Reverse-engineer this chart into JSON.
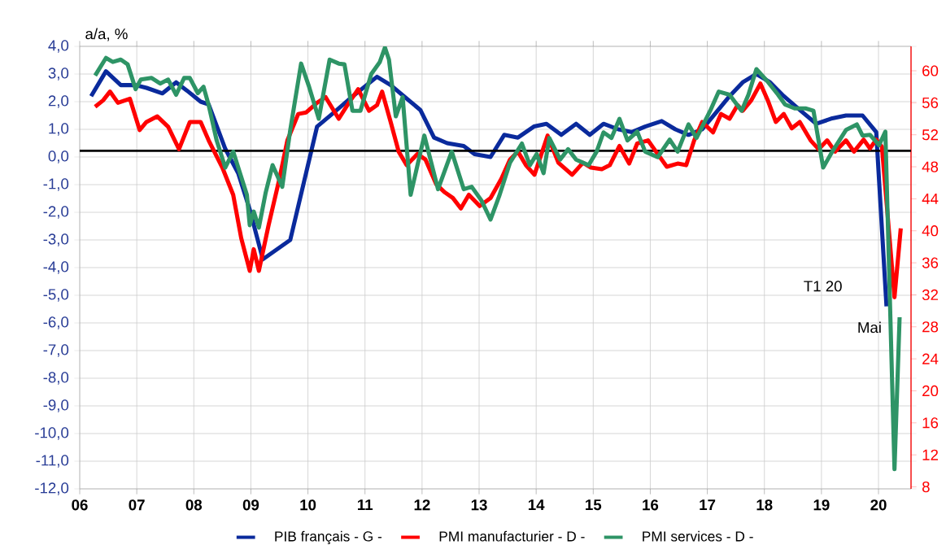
{
  "chart_data": {
    "type": "line",
    "ylabel": "a/a, %",
    "annotations": [
      "T1 20",
      "Mai"
    ],
    "series": [
      {
        "name": "PIB français - G -",
        "color": "#0a2a9c",
        "x": [
          2006.2,
          2006.46,
          2006.72,
          2006.98,
          2007.17,
          2007.45,
          2007.69,
          2007.88,
          2008.12,
          2008.26,
          2008.55,
          2008.78,
          2008.98,
          2009.21,
          2009.69,
          2010.16,
          2010.45,
          2010.73,
          2010.97,
          2011.21,
          2011.45,
          2011.68,
          2011.97,
          2012.21,
          2012.44,
          2012.73,
          2012.92,
          2013.2,
          2013.44,
          2013.68,
          2013.96,
          2014.18,
          2014.44,
          2014.7,
          2014.94,
          2015.18,
          2015.44,
          2015.68,
          2015.91,
          2016.2,
          2016.44,
          2016.67,
          2016.91,
          2017.15,
          2017.39,
          2017.62,
          2017.86,
          2018.1,
          2018.34,
          2018.62,
          2018.91,
          2019.19,
          2019.43,
          2019.72,
          2019.96,
          2020.14
        ],
        "values": [
          2.2,
          3.1,
          2.6,
          2.6,
          2.5,
          2.3,
          2.7,
          2.4,
          2.0,
          1.9,
          0.3,
          -0.6,
          -1.9,
          -3.7,
          -3.0,
          1.1,
          1.6,
          2.1,
          2.5,
          2.9,
          2.6,
          2.2,
          1.7,
          0.7,
          0.5,
          0.4,
          0.1,
          0.0,
          0.8,
          0.7,
          1.1,
          1.2,
          0.8,
          1.2,
          0.8,
          1.2,
          1.0,
          0.9,
          1.1,
          1.3,
          1.0,
          0.8,
          1.0,
          1.6,
          2.2,
          2.7,
          3.0,
          2.7,
          2.2,
          1.7,
          1.2,
          1.4,
          1.5,
          1.5,
          0.9,
          -5.4
        ]
      },
      {
        "name": "PMI manufacturier - D -",
        "color": "#ff0000",
        "axis": "y2",
        "x": [
          2006.27,
          2006.41,
          2006.53,
          2006.67,
          2006.88,
          2007.05,
          2007.17,
          2007.36,
          2007.55,
          2007.74,
          2007.93,
          2008.12,
          2008.26,
          2008.5,
          2008.69,
          2008.83,
          2008.98,
          2009.05,
          2009.14,
          2009.31,
          2009.5,
          2009.64,
          2009.83,
          2009.97,
          2010.16,
          2010.31,
          2010.54,
          2010.69,
          2010.88,
          2011.07,
          2011.21,
          2011.3,
          2011.45,
          2011.59,
          2011.73,
          2011.92,
          2012.06,
          2012.25,
          2012.4,
          2012.54,
          2012.68,
          2012.82,
          2013.01,
          2013.2,
          2013.39,
          2013.54,
          2013.68,
          2013.82,
          2013.97,
          2014.2,
          2014.39,
          2014.63,
          2014.82,
          2014.96,
          2015.15,
          2015.29,
          2015.46,
          2015.63,
          2015.77,
          2015.96,
          2016.1,
          2016.29,
          2016.48,
          2016.63,
          2016.77,
          2016.91,
          2017.1,
          2017.24,
          2017.39,
          2017.53,
          2017.62,
          2017.77,
          2017.93,
          2018.06,
          2018.2,
          2018.34,
          2018.48,
          2018.62,
          2018.81,
          2018.95,
          2019.1,
          2019.24,
          2019.43,
          2019.57,
          2019.74,
          2019.85,
          2019.96,
          2020.06,
          2020.28,
          2020.39
        ],
        "values": [
          55.5,
          56.3,
          57.4,
          56.0,
          56.5,
          52.6,
          53.6,
          54.3,
          53.0,
          50.2,
          53.6,
          53.6,
          51.3,
          47.9,
          44.5,
          39.1,
          35.0,
          37.7,
          35.0,
          40.7,
          46.5,
          51.3,
          54.6,
          54.8,
          56.0,
          56.7,
          54.0,
          55.7,
          57.7,
          55.0,
          55.7,
          57.4,
          53.6,
          49.9,
          48.2,
          49.6,
          48.9,
          45.8,
          44.8,
          44.1,
          42.8,
          44.5,
          43.1,
          44.1,
          46.5,
          48.9,
          49.9,
          48.2,
          47.0,
          51.9,
          48.5,
          47.0,
          48.5,
          47.9,
          47.7,
          48.2,
          50.6,
          48.4,
          50.9,
          51.3,
          49.9,
          48.0,
          48.4,
          48.2,
          51.3,
          53.6,
          52.3,
          54.6,
          54.0,
          55.7,
          55.0,
          56.3,
          58.4,
          56.3,
          53.6,
          54.6,
          52.8,
          53.6,
          51.3,
          50.2,
          51.3,
          49.9,
          51.3,
          49.9,
          51.4,
          50.3,
          51.4,
          50.5,
          31.7,
          40.3
        ]
      },
      {
        "name": "PMI services - D -",
        "color": "#2e9466",
        "axis": "y2",
        "x": [
          2006.27,
          2006.46,
          2006.58,
          2006.72,
          2006.84,
          2006.98,
          2007.07,
          2007.26,
          2007.41,
          2007.55,
          2007.69,
          2007.83,
          2007.93,
          2008.07,
          2008.17,
          2008.26,
          2008.4,
          2008.55,
          2008.69,
          2008.81,
          2008.93,
          2008.98,
          2009.05,
          2009.14,
          2009.26,
          2009.38,
          2009.55,
          2009.69,
          2009.88,
          2010.02,
          2010.19,
          2010.38,
          2010.54,
          2010.64,
          2010.78,
          2010.92,
          2011.11,
          2011.26,
          2011.35,
          2011.42,
          2011.54,
          2011.66,
          2011.8,
          2012.04,
          2012.28,
          2012.52,
          2012.73,
          2012.87,
          2013.04,
          2013.2,
          2013.35,
          2013.54,
          2013.75,
          2013.89,
          2014.01,
          2014.13,
          2014.23,
          2014.42,
          2014.56,
          2014.7,
          2014.92,
          2015.06,
          2015.18,
          2015.32,
          2015.46,
          2015.6,
          2015.77,
          2015.91,
          2016.13,
          2016.34,
          2016.48,
          2016.67,
          2016.81,
          2017.05,
          2017.2,
          2017.39,
          2017.6,
          2017.72,
          2017.86,
          2018.05,
          2018.24,
          2018.36,
          2018.53,
          2018.72,
          2018.86,
          2019.03,
          2019.19,
          2019.43,
          2019.62,
          2019.72,
          2019.85,
          2020.01,
          2020.12,
          2020.28,
          2020.37
        ],
        "values": [
          59.4,
          61.6,
          61.1,
          61.4,
          60.8,
          57.7,
          58.9,
          59.1,
          58.4,
          58.9,
          57.0,
          59.1,
          59.1,
          57.2,
          58.0,
          55.7,
          51.3,
          47.9,
          49.9,
          47.2,
          44.5,
          40.7,
          42.4,
          40.4,
          44.8,
          48.2,
          45.5,
          52.6,
          60.9,
          58.0,
          54.0,
          61.4,
          60.9,
          60.8,
          55.0,
          55.0,
          59.6,
          61.1,
          62.9,
          61.4,
          54.3,
          56.7,
          44.5,
          51.9,
          45.2,
          49.9,
          45.2,
          45.5,
          43.8,
          41.4,
          44.3,
          48.5,
          50.9,
          48.2,
          49.6,
          47.2,
          51.6,
          48.9,
          50.2,
          48.9,
          48.2,
          49.9,
          52.3,
          51.6,
          54.0,
          51.3,
          52.4,
          49.9,
          49.2,
          51.4,
          49.9,
          53.3,
          51.6,
          55.0,
          57.4,
          57.0,
          55.0,
          57.0,
          60.2,
          58.7,
          57.0,
          55.8,
          55.3,
          55.3,
          55.0,
          47.9,
          49.9,
          52.6,
          53.3,
          51.9,
          52.0,
          50.7,
          52.4,
          10.2,
          29.2
        ]
      }
    ],
    "xlim": [
      2006,
      2020.57
    ],
    "xticks": [
      {
        "value": 2006,
        "label": "06"
      },
      {
        "value": 2007,
        "label": "07"
      },
      {
        "value": 2008,
        "label": "08"
      },
      {
        "value": 2009,
        "label": "09"
      },
      {
        "value": 2010,
        "label": "10"
      },
      {
        "value": 2011,
        "label": "11"
      },
      {
        "value": 2012,
        "label": "12"
      },
      {
        "value": 2013,
        "label": "13"
      },
      {
        "value": 2014,
        "label": "14"
      },
      {
        "value": 2015,
        "label": "15"
      },
      {
        "value": 2016,
        "label": "16"
      },
      {
        "value": 2017,
        "label": "17"
      },
      {
        "value": 2018,
        "label": "18"
      },
      {
        "value": 2019,
        "label": "19"
      },
      {
        "value": 2020,
        "label": "20"
      }
    ],
    "ylim": [
      -12,
      4
    ],
    "yticks": [
      {
        "value": 4,
        "label": "4,0"
      },
      {
        "value": 3,
        "label": "3,0"
      },
      {
        "value": 2,
        "label": "2,0"
      },
      {
        "value": 1,
        "label": "1,0"
      },
      {
        "value": 0,
        "label": "0,0"
      },
      {
        "value": -1,
        "label": "-1,0"
      },
      {
        "value": -2,
        "label": "-2,0"
      },
      {
        "value": -3,
        "label": "-3,0"
      },
      {
        "value": -4,
        "label": "-4,0"
      },
      {
        "value": -5,
        "label": "-5,0"
      },
      {
        "value": -6,
        "label": "-6,0"
      },
      {
        "value": -7,
        "label": "-7,0"
      },
      {
        "value": -8,
        "label": "-8,0"
      },
      {
        "value": -9,
        "label": "-9,0"
      },
      {
        "value": -10,
        "label": "-10,0"
      },
      {
        "value": -11,
        "label": "-11,0"
      },
      {
        "value": -12,
        "label": "-12,0"
      }
    ],
    "y2lim": [
      7.75,
      63.05
    ],
    "y2ticks": [
      60,
      56,
      52,
      48,
      44,
      40,
      36,
      32,
      28,
      24,
      20,
      16,
      12,
      8
    ],
    "ref_lines": [
      {
        "axis": "y2",
        "value": 50,
        "color": "#000000"
      }
    ],
    "grid": true,
    "legend": "bottom",
    "line_style": "solid"
  }
}
